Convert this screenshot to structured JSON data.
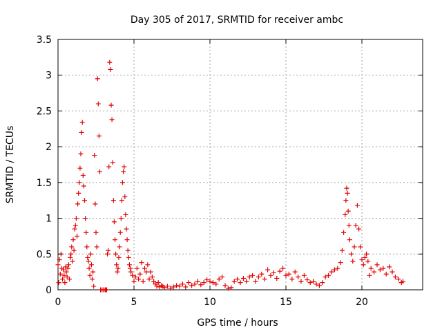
{
  "chart_data": {
    "type": "scatter",
    "title": "Day 305 of 2017, SRMTID for receiver ambc",
    "xlabel": "GPS time / hours",
    "ylabel": "SRMTID / TECUs",
    "xlim": [
      0,
      24
    ],
    "ylim": [
      0,
      3.5
    ],
    "grid": true,
    "x_ticks": [
      0,
      5,
      10,
      15,
      20
    ],
    "x_tick_labels": [
      "0",
      "5",
      "10",
      "15",
      "20"
    ],
    "y_ticks": [
      0,
      0.5,
      1,
      1.5,
      2,
      2.5,
      3,
      3.5
    ],
    "y_tick_labels": [
      "0",
      "0.5",
      "1",
      "1.5",
      "2",
      "2.5",
      "3",
      "3.5"
    ],
    "marker": "+",
    "color": "#e00000",
    "series": [
      {
        "name": "SRMTID",
        "points": [
          [
            0.0,
            0.35
          ],
          [
            0.05,
            0.1
          ],
          [
            0.1,
            0.42
          ],
          [
            0.15,
            0.22
          ],
          [
            0.2,
            0.5
          ],
          [
            0.25,
            0.3
          ],
          [
            0.3,
            0.15
          ],
          [
            0.35,
            0.28
          ],
          [
            0.4,
            0.2
          ],
          [
            0.45,
            0.1
          ],
          [
            0.5,
            0.32
          ],
          [
            0.55,
            0.25
          ],
          [
            0.6,
            0.18
          ],
          [
            0.65,
            0.3
          ],
          [
            0.7,
            0.35
          ],
          [
            0.75,
            0.15
          ],
          [
            0.8,
            0.45
          ],
          [
            0.85,
            0.5
          ],
          [
            0.9,
            0.6
          ],
          [
            0.95,
            0.4
          ],
          [
            1.0,
            0.7
          ],
          [
            1.05,
            0.55
          ],
          [
            1.1,
            0.85
          ],
          [
            1.15,
            0.9
          ],
          [
            1.2,
            1.0
          ],
          [
            1.25,
            0.75
          ],
          [
            1.3,
            1.2
          ],
          [
            1.35,
            1.35
          ],
          [
            1.4,
            1.5
          ],
          [
            1.45,
            1.7
          ],
          [
            1.5,
            1.9
          ],
          [
            1.55,
            2.2
          ],
          [
            1.6,
            2.34
          ],
          [
            1.65,
            1.6
          ],
          [
            1.7,
            1.45
          ],
          [
            1.75,
            1.25
          ],
          [
            1.8,
            1.0
          ],
          [
            1.85,
            0.8
          ],
          [
            1.9,
            0.6
          ],
          [
            1.95,
            0.45
          ],
          [
            2.0,
            0.4
          ],
          [
            2.05,
            0.3
          ],
          [
            2.1,
            0.2
          ],
          [
            2.15,
            0.5
          ],
          [
            2.2,
            0.35
          ],
          [
            2.25,
            0.15
          ],
          [
            2.3,
            0.25
          ],
          [
            2.35,
            0.05
          ],
          [
            2.4,
            1.88
          ],
          [
            2.45,
            1.2
          ],
          [
            2.5,
            0.8
          ],
          [
            2.55,
            0.6
          ],
          [
            2.6,
            2.95
          ],
          [
            2.65,
            2.6
          ],
          [
            2.7,
            2.15
          ],
          [
            2.75,
            1.65
          ],
          [
            2.8,
            0.0
          ],
          [
            2.9,
            0.0
          ],
          [
            3.0,
            0.0
          ],
          [
            3.1,
            0.0
          ],
          [
            3.15,
            0.0
          ],
          [
            3.2,
            0.0
          ],
          [
            3.25,
            0.5
          ],
          [
            3.3,
            0.55
          ],
          [
            3.35,
            1.72
          ],
          [
            3.4,
            3.18
          ],
          [
            3.45,
            3.08
          ],
          [
            3.5,
            2.58
          ],
          [
            3.55,
            2.38
          ],
          [
            3.6,
            1.78
          ],
          [
            3.65,
            1.25
          ],
          [
            3.7,
            0.95
          ],
          [
            3.75,
            0.7
          ],
          [
            3.8,
            0.5
          ],
          [
            3.85,
            0.35
          ],
          [
            3.9,
            0.25
          ],
          [
            3.95,
            0.3
          ],
          [
            4.0,
            0.45
          ],
          [
            4.05,
            0.6
          ],
          [
            4.1,
            0.8
          ],
          [
            4.15,
            1.0
          ],
          [
            4.2,
            1.25
          ],
          [
            4.25,
            1.5
          ],
          [
            4.3,
            1.65
          ],
          [
            4.35,
            1.72
          ],
          [
            4.4,
            1.3
          ],
          [
            4.45,
            1.05
          ],
          [
            4.5,
            0.85
          ],
          [
            4.55,
            0.7
          ],
          [
            4.6,
            0.55
          ],
          [
            4.65,
            0.45
          ],
          [
            4.7,
            0.35
          ],
          [
            4.75,
            0.3
          ],
          [
            4.8,
            0.25
          ],
          [
            4.9,
            0.2
          ],
          [
            5.0,
            0.12
          ],
          [
            5.1,
            0.18
          ],
          [
            5.2,
            0.3
          ],
          [
            5.3,
            0.15
          ],
          [
            5.4,
            0.22
          ],
          [
            5.5,
            0.38
          ],
          [
            5.6,
            0.12
          ],
          [
            5.7,
            0.3
          ],
          [
            5.8,
            0.25
          ],
          [
            5.9,
            0.35
          ],
          [
            6.0,
            0.15
          ],
          [
            6.1,
            0.25
          ],
          [
            6.2,
            0.18
          ],
          [
            6.3,
            0.12
          ],
          [
            6.4,
            0.08
          ],
          [
            6.5,
            0.05
          ],
          [
            6.6,
            0.1
          ],
          [
            6.7,
            0.04
          ],
          [
            6.8,
            0.06
          ],
          [
            6.9,
            0.05
          ],
          [
            7.0,
            0.03
          ],
          [
            7.2,
            0.05
          ],
          [
            7.4,
            0.02
          ],
          [
            7.6,
            0.04
          ],
          [
            7.8,
            0.06
          ],
          [
            8.0,
            0.05
          ],
          [
            8.2,
            0.08
          ],
          [
            8.4,
            0.04
          ],
          [
            8.6,
            0.1
          ],
          [
            8.8,
            0.06
          ],
          [
            9.0,
            0.08
          ],
          [
            9.2,
            0.12
          ],
          [
            9.4,
            0.07
          ],
          [
            9.6,
            0.1
          ],
          [
            9.8,
            0.14
          ],
          [
            10.0,
            0.12
          ],
          [
            10.2,
            0.1
          ],
          [
            10.4,
            0.08
          ],
          [
            10.6,
            0.15
          ],
          [
            10.8,
            0.18
          ],
          [
            11.0,
            0.06
          ],
          [
            11.2,
            0.02
          ],
          [
            11.4,
            0.03
          ],
          [
            11.6,
            0.12
          ],
          [
            11.8,
            0.15
          ],
          [
            12.0,
            0.1
          ],
          [
            12.2,
            0.16
          ],
          [
            12.4,
            0.12
          ],
          [
            12.6,
            0.18
          ],
          [
            12.8,
            0.2
          ],
          [
            13.0,
            0.12
          ],
          [
            13.2,
            0.18
          ],
          [
            13.4,
            0.22
          ],
          [
            13.6,
            0.15
          ],
          [
            13.8,
            0.28
          ],
          [
            14.0,
            0.2
          ],
          [
            14.2,
            0.24
          ],
          [
            14.4,
            0.16
          ],
          [
            14.6,
            0.26
          ],
          [
            14.8,
            0.3
          ],
          [
            15.0,
            0.2
          ],
          [
            15.2,
            0.22
          ],
          [
            15.4,
            0.15
          ],
          [
            15.6,
            0.25
          ],
          [
            15.8,
            0.18
          ],
          [
            16.0,
            0.12
          ],
          [
            16.2,
            0.2
          ],
          [
            16.4,
            0.14
          ],
          [
            16.6,
            0.1
          ],
          [
            16.8,
            0.12
          ],
          [
            17.0,
            0.08
          ],
          [
            17.2,
            0.06
          ],
          [
            17.4,
            0.1
          ],
          [
            17.6,
            0.18
          ],
          [
            17.8,
            0.2
          ],
          [
            18.0,
            0.25
          ],
          [
            18.2,
            0.28
          ],
          [
            18.4,
            0.3
          ],
          [
            18.6,
            0.38
          ],
          [
            18.7,
            0.55
          ],
          [
            18.8,
            0.8
          ],
          [
            18.9,
            1.05
          ],
          [
            18.95,
            1.25
          ],
          [
            19.0,
            1.42
          ],
          [
            19.05,
            1.35
          ],
          [
            19.1,
            1.1
          ],
          [
            19.15,
            0.9
          ],
          [
            19.2,
            0.7
          ],
          [
            19.3,
            0.5
          ],
          [
            19.4,
            0.4
          ],
          [
            19.5,
            0.6
          ],
          [
            19.6,
            0.9
          ],
          [
            19.7,
            1.18
          ],
          [
            19.8,
            0.85
          ],
          [
            19.9,
            0.6
          ],
          [
            20.0,
            0.42
          ],
          [
            20.1,
            0.35
          ],
          [
            20.2,
            0.45
          ],
          [
            20.3,
            0.5
          ],
          [
            20.4,
            0.4
          ],
          [
            20.5,
            0.2
          ],
          [
            20.6,
            0.3
          ],
          [
            20.8,
            0.25
          ],
          [
            21.0,
            0.35
          ],
          [
            21.2,
            0.28
          ],
          [
            21.4,
            0.3
          ],
          [
            21.6,
            0.22
          ],
          [
            21.8,
            0.32
          ],
          [
            22.0,
            0.25
          ],
          [
            22.2,
            0.18
          ],
          [
            22.4,
            0.15
          ],
          [
            22.6,
            0.1
          ],
          [
            22.7,
            0.12
          ]
        ]
      }
    ]
  }
}
